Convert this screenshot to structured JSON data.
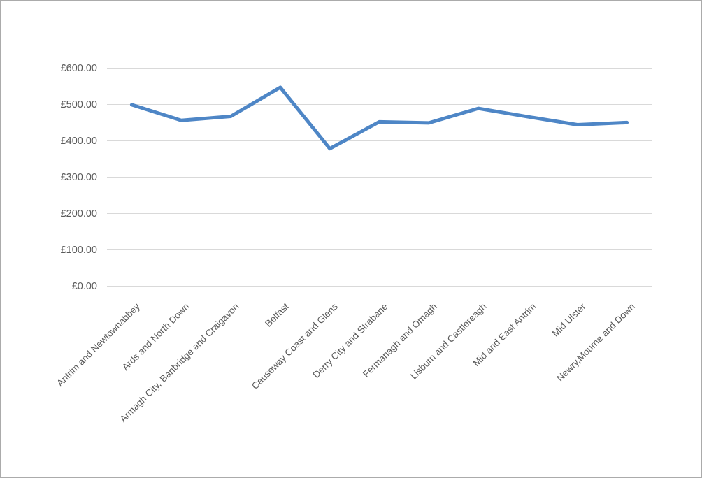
{
  "chart": {
    "background_color": "#ffffff",
    "border_color": "#ababab",
    "line_color": "#4e86c6",
    "gridline_color": "#d9d9d9",
    "label_color": "#595959"
  },
  "chart_data": {
    "type": "line",
    "title": "",
    "xlabel": "",
    "ylabel": "",
    "legend": false,
    "grid": true,
    "ylim": [
      0,
      600
    ],
    "y_ticks": [
      0,
      100,
      200,
      300,
      400,
      500,
      600
    ],
    "y_tick_labels": [
      "£0.00",
      "£100.00",
      "£200.00",
      "£300.00",
      "£400.00",
      "£500.00",
      "£600.00"
    ],
    "categories": [
      "Antrim and Newtownabbey",
      "Ards and North Down",
      "Armagh City, Banbridge and Craigavon",
      "Belfast",
      "Causeway Coast and Glens",
      "Derry City and Strabane",
      "Fermanagh and Omagh",
      "Lisburn and Castlereagh",
      "Mid and East Antrim",
      "Mid Ulster",
      "Newry,Mourne and Down"
    ],
    "series": [
      {
        "name": "value",
        "values": [
          500,
          457,
          468,
          548,
          379,
          453,
          450,
          490,
          467,
          445,
          451
        ]
      }
    ]
  }
}
